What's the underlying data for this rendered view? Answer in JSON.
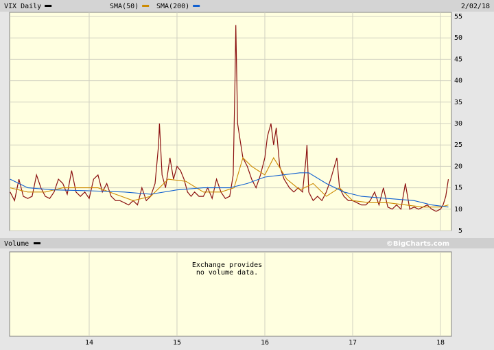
{
  "chart_data": {
    "type": "line",
    "date": "2/02/18",
    "grid": true,
    "xlim": [
      13.094,
      18.125
    ],
    "xticks": [
      14,
      15,
      16,
      17,
      18
    ],
    "ylim": [
      5,
      55
    ],
    "yticks": [
      5,
      10,
      15,
      20,
      25,
      30,
      35,
      40,
      45,
      50,
      55
    ],
    "series": [
      {
        "name": "VIX Daily",
        "color": "#000000",
        "line_color": "#8b1010",
        "x": [
          13.1,
          13.15,
          13.2,
          13.25,
          13.3,
          13.35,
          13.4,
          13.45,
          13.5,
          13.55,
          13.6,
          13.65,
          13.7,
          13.75,
          13.8,
          13.85,
          13.9,
          13.95,
          14.0,
          14.05,
          14.1,
          14.15,
          14.2,
          14.25,
          14.3,
          14.35,
          14.4,
          14.45,
          14.5,
          14.55,
          14.6,
          14.65,
          14.7,
          14.75,
          14.79,
          14.8,
          14.83,
          14.87,
          14.92,
          14.96,
          15.0,
          15.04,
          15.08,
          15.12,
          15.16,
          15.2,
          15.25,
          15.3,
          15.35,
          15.4,
          15.45,
          15.5,
          15.55,
          15.6,
          15.64,
          15.66,
          15.67,
          15.69,
          15.72,
          15.75,
          15.8,
          15.85,
          15.9,
          15.95,
          16.0,
          16.03,
          16.07,
          16.1,
          16.13,
          16.17,
          16.22,
          16.28,
          16.33,
          16.38,
          16.43,
          16.47,
          16.48,
          16.5,
          16.55,
          16.6,
          16.65,
          16.7,
          16.75,
          16.82,
          16.85,
          16.9,
          16.95,
          17.0,
          17.05,
          17.1,
          17.15,
          17.2,
          17.25,
          17.3,
          17.35,
          17.4,
          17.45,
          17.5,
          17.55,
          17.6,
          17.65,
          17.7,
          17.75,
          17.8,
          17.85,
          17.9,
          17.95,
          18.0,
          18.03,
          18.06,
          18.09
        ],
        "values": [
          14,
          12,
          17,
          13,
          12.5,
          13,
          18,
          15,
          13,
          12.5,
          14,
          17,
          16,
          13.5,
          19,
          14,
          13,
          14,
          12.5,
          17,
          18,
          14,
          16,
          13,
          12,
          12,
          11.5,
          11,
          12,
          11,
          15,
          12,
          13,
          16,
          25,
          30,
          18,
          15,
          22,
          17,
          20,
          19,
          17,
          14,
          13,
          14,
          13,
          13,
          15,
          12.5,
          17,
          14,
          12.5,
          13,
          18,
          40,
          53,
          30,
          26,
          22,
          20,
          17,
          15,
          18,
          22,
          27,
          30,
          25,
          29,
          20,
          17,
          15,
          14,
          15,
          14,
          22,
          25,
          14,
          12,
          13,
          12,
          14,
          17,
          22,
          15,
          13,
          12,
          12,
          11.5,
          11,
          11,
          12,
          14,
          11,
          15,
          10.5,
          10,
          11,
          10,
          16,
          10,
          10.5,
          10,
          10.5,
          11,
          10,
          9.5,
          10,
          11,
          13,
          17
        ]
      },
      {
        "name": "SMA(50)",
        "color": "#cc8a00",
        "x": [
          13.1,
          13.3,
          13.5,
          13.7,
          13.9,
          14.1,
          14.3,
          14.5,
          14.7,
          14.9,
          15.1,
          15.3,
          15.5,
          15.65,
          15.75,
          15.85,
          16.0,
          16.1,
          16.25,
          16.4,
          16.55,
          16.7,
          16.85,
          17.0,
          17.2,
          17.4,
          17.6,
          17.8,
          18.0,
          18.09
        ],
        "values": [
          15,
          14,
          14,
          15,
          15,
          15,
          13.5,
          12,
          13,
          17,
          16.5,
          14,
          14,
          15,
          22,
          20,
          18,
          22,
          17,
          14.5,
          16,
          13,
          15,
          12,
          11.5,
          11.5,
          11,
          10.5,
          10.5,
          11
        ]
      },
      {
        "name": "SMA(200)",
        "color": "#1060d0",
        "x": [
          13.1,
          13.3,
          13.6,
          14.0,
          14.4,
          14.7,
          15.0,
          15.3,
          15.6,
          15.8,
          16.0,
          16.2,
          16.4,
          16.5,
          16.7,
          16.9,
          17.1,
          17.4,
          17.7,
          17.9,
          18.09
        ],
        "values": [
          17,
          15,
          14.5,
          14.3,
          14,
          13.5,
          14.5,
          15,
          15,
          16,
          17.5,
          18,
          18.5,
          18.5,
          16,
          14,
          13,
          12.5,
          12,
          11,
          10.5
        ]
      }
    ],
    "volume_panel": {
      "title": "Volume",
      "credit": "©BigCharts.com",
      "message": [
        "Exchange provides",
        "no volume data."
      ]
    }
  }
}
